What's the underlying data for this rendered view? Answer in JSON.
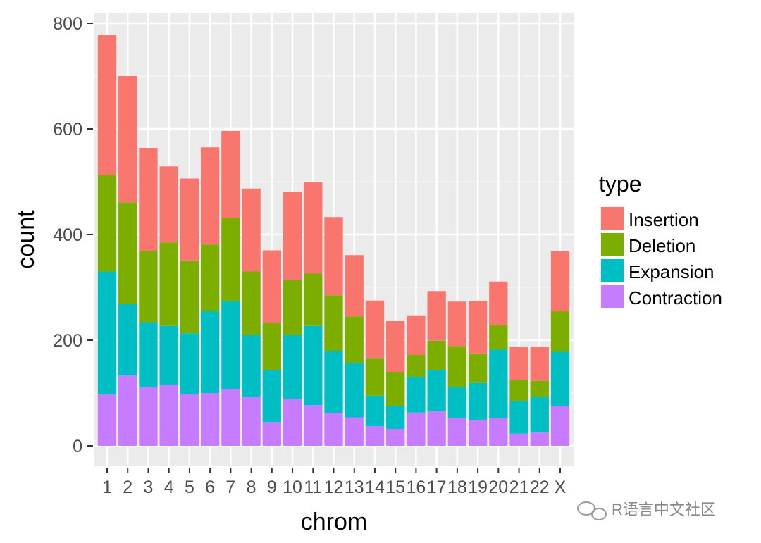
{
  "chart_data": {
    "type": "bar",
    "stacked": true,
    "xlabel": "chrom",
    "ylabel": "count",
    "ylim": [
      0,
      800
    ],
    "yticks": [
      0,
      200,
      400,
      600,
      800
    ],
    "grid": true,
    "legend_position": "right",
    "categories": [
      "1",
      "2",
      "3",
      "4",
      "5",
      "6",
      "7",
      "8",
      "9",
      "10",
      "11",
      "12",
      "13",
      "14",
      "15",
      "16",
      "17",
      "18",
      "19",
      "20",
      "21",
      "22",
      "X"
    ],
    "series": [
      {
        "name": "Contraction",
        "color": "#C77CFF",
        "values": [
          97,
          133,
          112,
          115,
          98,
          100,
          108,
          93,
          45,
          89,
          77,
          62,
          54,
          37,
          32,
          63,
          65,
          53,
          49,
          52,
          23,
          25,
          75
        ]
      },
      {
        "name": "Expansion",
        "color": "#00BFC4",
        "values": [
          233,
          135,
          122,
          112,
          115,
          156,
          166,
          117,
          98,
          121,
          150,
          117,
          103,
          58,
          43,
          67,
          78,
          59,
          70,
          130,
          62,
          68,
          103
        ]
      },
      {
        "name": "Deletion",
        "color": "#7CAE00",
        "values": [
          183,
          193,
          134,
          158,
          138,
          125,
          158,
          120,
          90,
          104,
          99,
          106,
          88,
          70,
          65,
          42,
          56,
          77,
          56,
          46,
          40,
          30,
          77
        ]
      },
      {
        "name": "Insertion",
        "color": "#F8766D",
        "values": [
          265,
          239,
          196,
          144,
          155,
          184,
          164,
          157,
          137,
          166,
          173,
          148,
          116,
          110,
          96,
          75,
          94,
          84,
          99,
          83,
          63,
          64,
          113
        ]
      }
    ],
    "legend": {
      "title": "type",
      "entries": [
        "Insertion",
        "Deletion",
        "Expansion",
        "Contraction"
      ]
    }
  },
  "watermark": "R语言中文社区"
}
